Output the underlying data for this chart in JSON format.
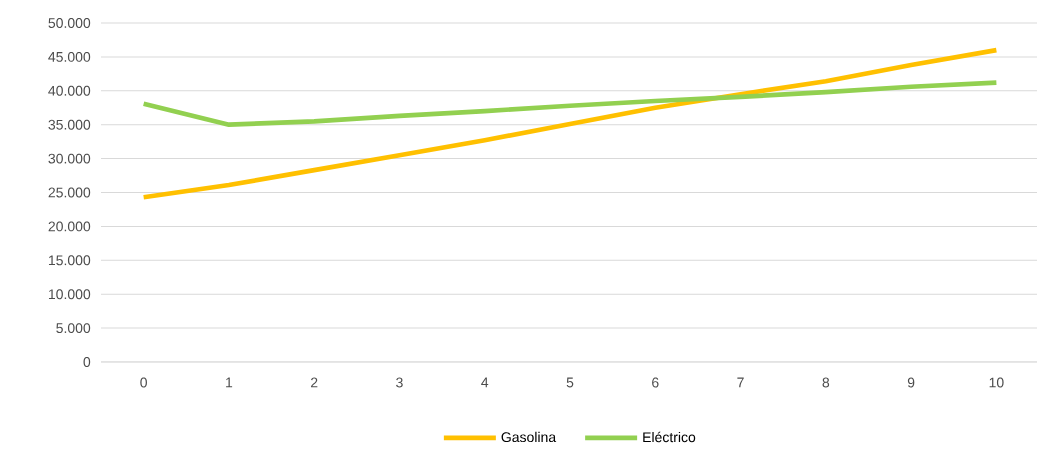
{
  "chart_data": {
    "type": "line",
    "categories": [
      "0",
      "1",
      "2",
      "3",
      "4",
      "5",
      "6",
      "7",
      "8",
      "9",
      "10"
    ],
    "series": [
      {
        "name": "Gasolina",
        "color": "#ffc000",
        "values": [
          24300,
          26100,
          28300,
          30500,
          32700,
          35100,
          37500,
          39500,
          41400,
          43800,
          46000
        ]
      },
      {
        "name": "Eléctrico",
        "color": "#92d050",
        "values": [
          38100,
          35000,
          35500,
          36300,
          37000,
          37800,
          38500,
          39100,
          39800,
          40600,
          41200
        ]
      }
    ],
    "ylim": [
      0,
      50000
    ],
    "yticks": [
      {
        "value": 0,
        "label": "0"
      },
      {
        "value": 5000,
        "label": "5.000"
      },
      {
        "value": 10000,
        "label": "10.000"
      },
      {
        "value": 15000,
        "label": "15.000"
      },
      {
        "value": 20000,
        "label": "20.000"
      },
      {
        "value": 25000,
        "label": "25.000"
      },
      {
        "value": 30000,
        "label": "30.000"
      },
      {
        "value": 35000,
        "label": "35.000"
      },
      {
        "value": 40000,
        "label": "40.000"
      },
      {
        "value": 45000,
        "label": "45.000"
      },
      {
        "value": 50000,
        "label": "50.000"
      }
    ],
    "grid": "y",
    "legend": "bottom",
    "line_style": "solid"
  }
}
